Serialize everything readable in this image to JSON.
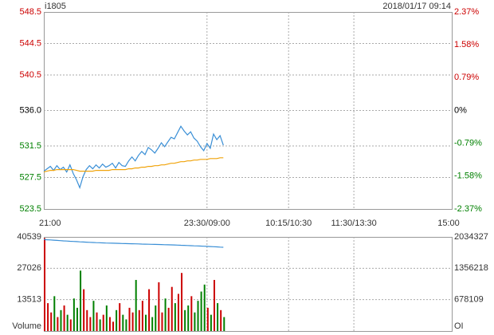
{
  "chart_data": [
    {
      "type": "line",
      "title": "i1805",
      "subtitle": "2018/01/17 09:14",
      "up_color": "#cc0000",
      "down_color": "#008000",
      "grid": true,
      "x": [
        0,
        3,
        6,
        9,
        12,
        15,
        18,
        21,
        24,
        27,
        30,
        33,
        36,
        39,
        42,
        45,
        48,
        51,
        54,
        57,
        60,
        63,
        66,
        69,
        72,
        75,
        78,
        81,
        84,
        87,
        90,
        93,
        96,
        99,
        102,
        105,
        108,
        111,
        114,
        117,
        120,
        123,
        126,
        129,
        132,
        135,
        138,
        141,
        144,
        147,
        150,
        153,
        156,
        159,
        162,
        165
      ],
      "xlim": [
        0,
        375
      ],
      "xticks": [
        {
          "value": 0,
          "label": "21:00"
        },
        {
          "value": 150,
          "label": "23:30/09:00"
        },
        {
          "value": 225,
          "label": "10:15/10:30"
        },
        {
          "value": 285,
          "label": "11:30/13:30"
        },
        {
          "value": 375,
          "label": "15:00"
        }
      ],
      "ylim": [
        523.5,
        548.5
      ],
      "yticks": [
        523.5,
        527.5,
        531.5,
        {
          "value": 536,
          "label": "536.0"
        },
        540.5,
        544.5,
        548.5
      ],
      "y2lim": [
        -2.37,
        2.37
      ],
      "y2ticks": [
        {
          "value": -2.37,
          "label": "-2.37%"
        },
        {
          "value": -1.58,
          "label": "-1.58%"
        },
        {
          "value": -0.79,
          "label": "-0.79%"
        },
        {
          "value": 0,
          "label": "0%"
        },
        {
          "value": 0.79,
          "label": "0.79%"
        },
        {
          "value": 1.58,
          "label": "1.58%"
        },
        {
          "value": 2.37,
          "label": "2.37%"
        }
      ],
      "series": [
        {
          "color": "#3a8fd6",
          "values": [
            528.3,
            528.6,
            528.9,
            528.4,
            529.0,
            528.5,
            528.8,
            528.2,
            529.1,
            528.0,
            527.2,
            526.2,
            527.6,
            528.5,
            529.0,
            528.6,
            529.1,
            528.7,
            529.2,
            528.8,
            529.0,
            529.3,
            528.7,
            529.4,
            529.0,
            528.9,
            529.6,
            530.1,
            529.6,
            530.3,
            530.8,
            530.4,
            531.3,
            531.0,
            530.6,
            531.2,
            531.9,
            531.4,
            532.0,
            532.6,
            532.4,
            533.2,
            534.0,
            533.4,
            532.9,
            533.3,
            532.5,
            532.1,
            531.4,
            530.9,
            531.8,
            531.2,
            533.0,
            532.3,
            532.8,
            531.6
          ]
        },
        {
          "color": "#f0a30a",
          "values": [
            528.2,
            528.3,
            528.4,
            528.4,
            528.5,
            528.5,
            528.5,
            528.5,
            528.5,
            528.5,
            528.4,
            528.3,
            528.3,
            528.3,
            528.3,
            528.3,
            528.4,
            528.4,
            528.4,
            528.4,
            528.4,
            528.5,
            528.5,
            528.5,
            528.5,
            528.5,
            528.6,
            528.6,
            528.7,
            528.7,
            528.8,
            528.8,
            528.9,
            528.9,
            529.0,
            529.0,
            529.1,
            529.1,
            529.2,
            529.3,
            529.3,
            529.4,
            529.5,
            529.5,
            529.6,
            529.6,
            529.7,
            529.7,
            529.8,
            529.8,
            529.8,
            529.9,
            529.9,
            529.9,
            530.0,
            530.0
          ]
        }
      ]
    },
    {
      "type": "bar",
      "y_label": "Volume",
      "y2_label": "OI",
      "up_color": "#cc0000",
      "down_color": "#008000",
      "x": [
        0,
        3,
        6,
        9,
        12,
        15,
        18,
        21,
        24,
        27,
        30,
        33,
        36,
        39,
        42,
        45,
        48,
        51,
        54,
        57,
        60,
        63,
        66,
        69,
        72,
        75,
        78,
        81,
        84,
        87,
        90,
        93,
        96,
        99,
        102,
        105,
        108,
        111,
        114,
        117,
        120,
        123,
        126,
        129,
        132,
        135,
        138,
        141,
        144,
        147,
        150,
        153,
        156,
        159,
        162,
        165
      ],
      "xlim": [
        0,
        375
      ],
      "xticks": [
        0,
        150,
        225,
        285,
        375
      ],
      "ylim": [
        0,
        40539
      ],
      "yticks": [
        13513,
        27026,
        40539
      ],
      "y2lim": [
        0,
        2034327
      ],
      "y2ticks": [
        678109,
        1356218,
        2034327
      ],
      "series": [
        {
          "values": [
            40000,
            12000,
            8000,
            15000,
            6000,
            9000,
            11000,
            7000,
            5000,
            14000,
            10000,
            26000,
            18000,
            9000,
            6000,
            13000,
            8000,
            5000,
            7000,
            11000,
            6000,
            4000,
            9000,
            12000,
            7000,
            5000,
            10000,
            8000,
            22000,
            9000,
            13000,
            7000,
            18000,
            6000,
            11000,
            21000,
            8000,
            14000,
            10000,
            19000,
            12000,
            16000,
            25000,
            9000,
            11000,
            15000,
            8000,
            13000,
            17000,
            20000,
            10000,
            7000,
            22000,
            12000,
            9000,
            6000
          ]
        },
        {
          "axis": "y2",
          "color": "#3a8fd6",
          "values": [
            1975000,
            1972000,
            1968000,
            1963000,
            1958000,
            1953000,
            1948000,
            1944000,
            1940000,
            1936000,
            1932000,
            1928000,
            1924000,
            1920000,
            1917000,
            1914000,
            1911000,
            1908000,
            1905000,
            1902000,
            1900000,
            1898000,
            1896000,
            1894000,
            1892000,
            1890000,
            1888000,
            1886000,
            1884000,
            1882000,
            1880000,
            1878000,
            1876000,
            1874000,
            1872000,
            1870000,
            1868000,
            1866000,
            1864000,
            1862000,
            1860000,
            1857000,
            1854000,
            1851000,
            1848000,
            1845000,
            1842000,
            1839000,
            1836000,
            1833000,
            1830000,
            1826000,
            1822000,
            1818000,
            1814000,
            1810000
          ]
        }
      ]
    }
  ]
}
